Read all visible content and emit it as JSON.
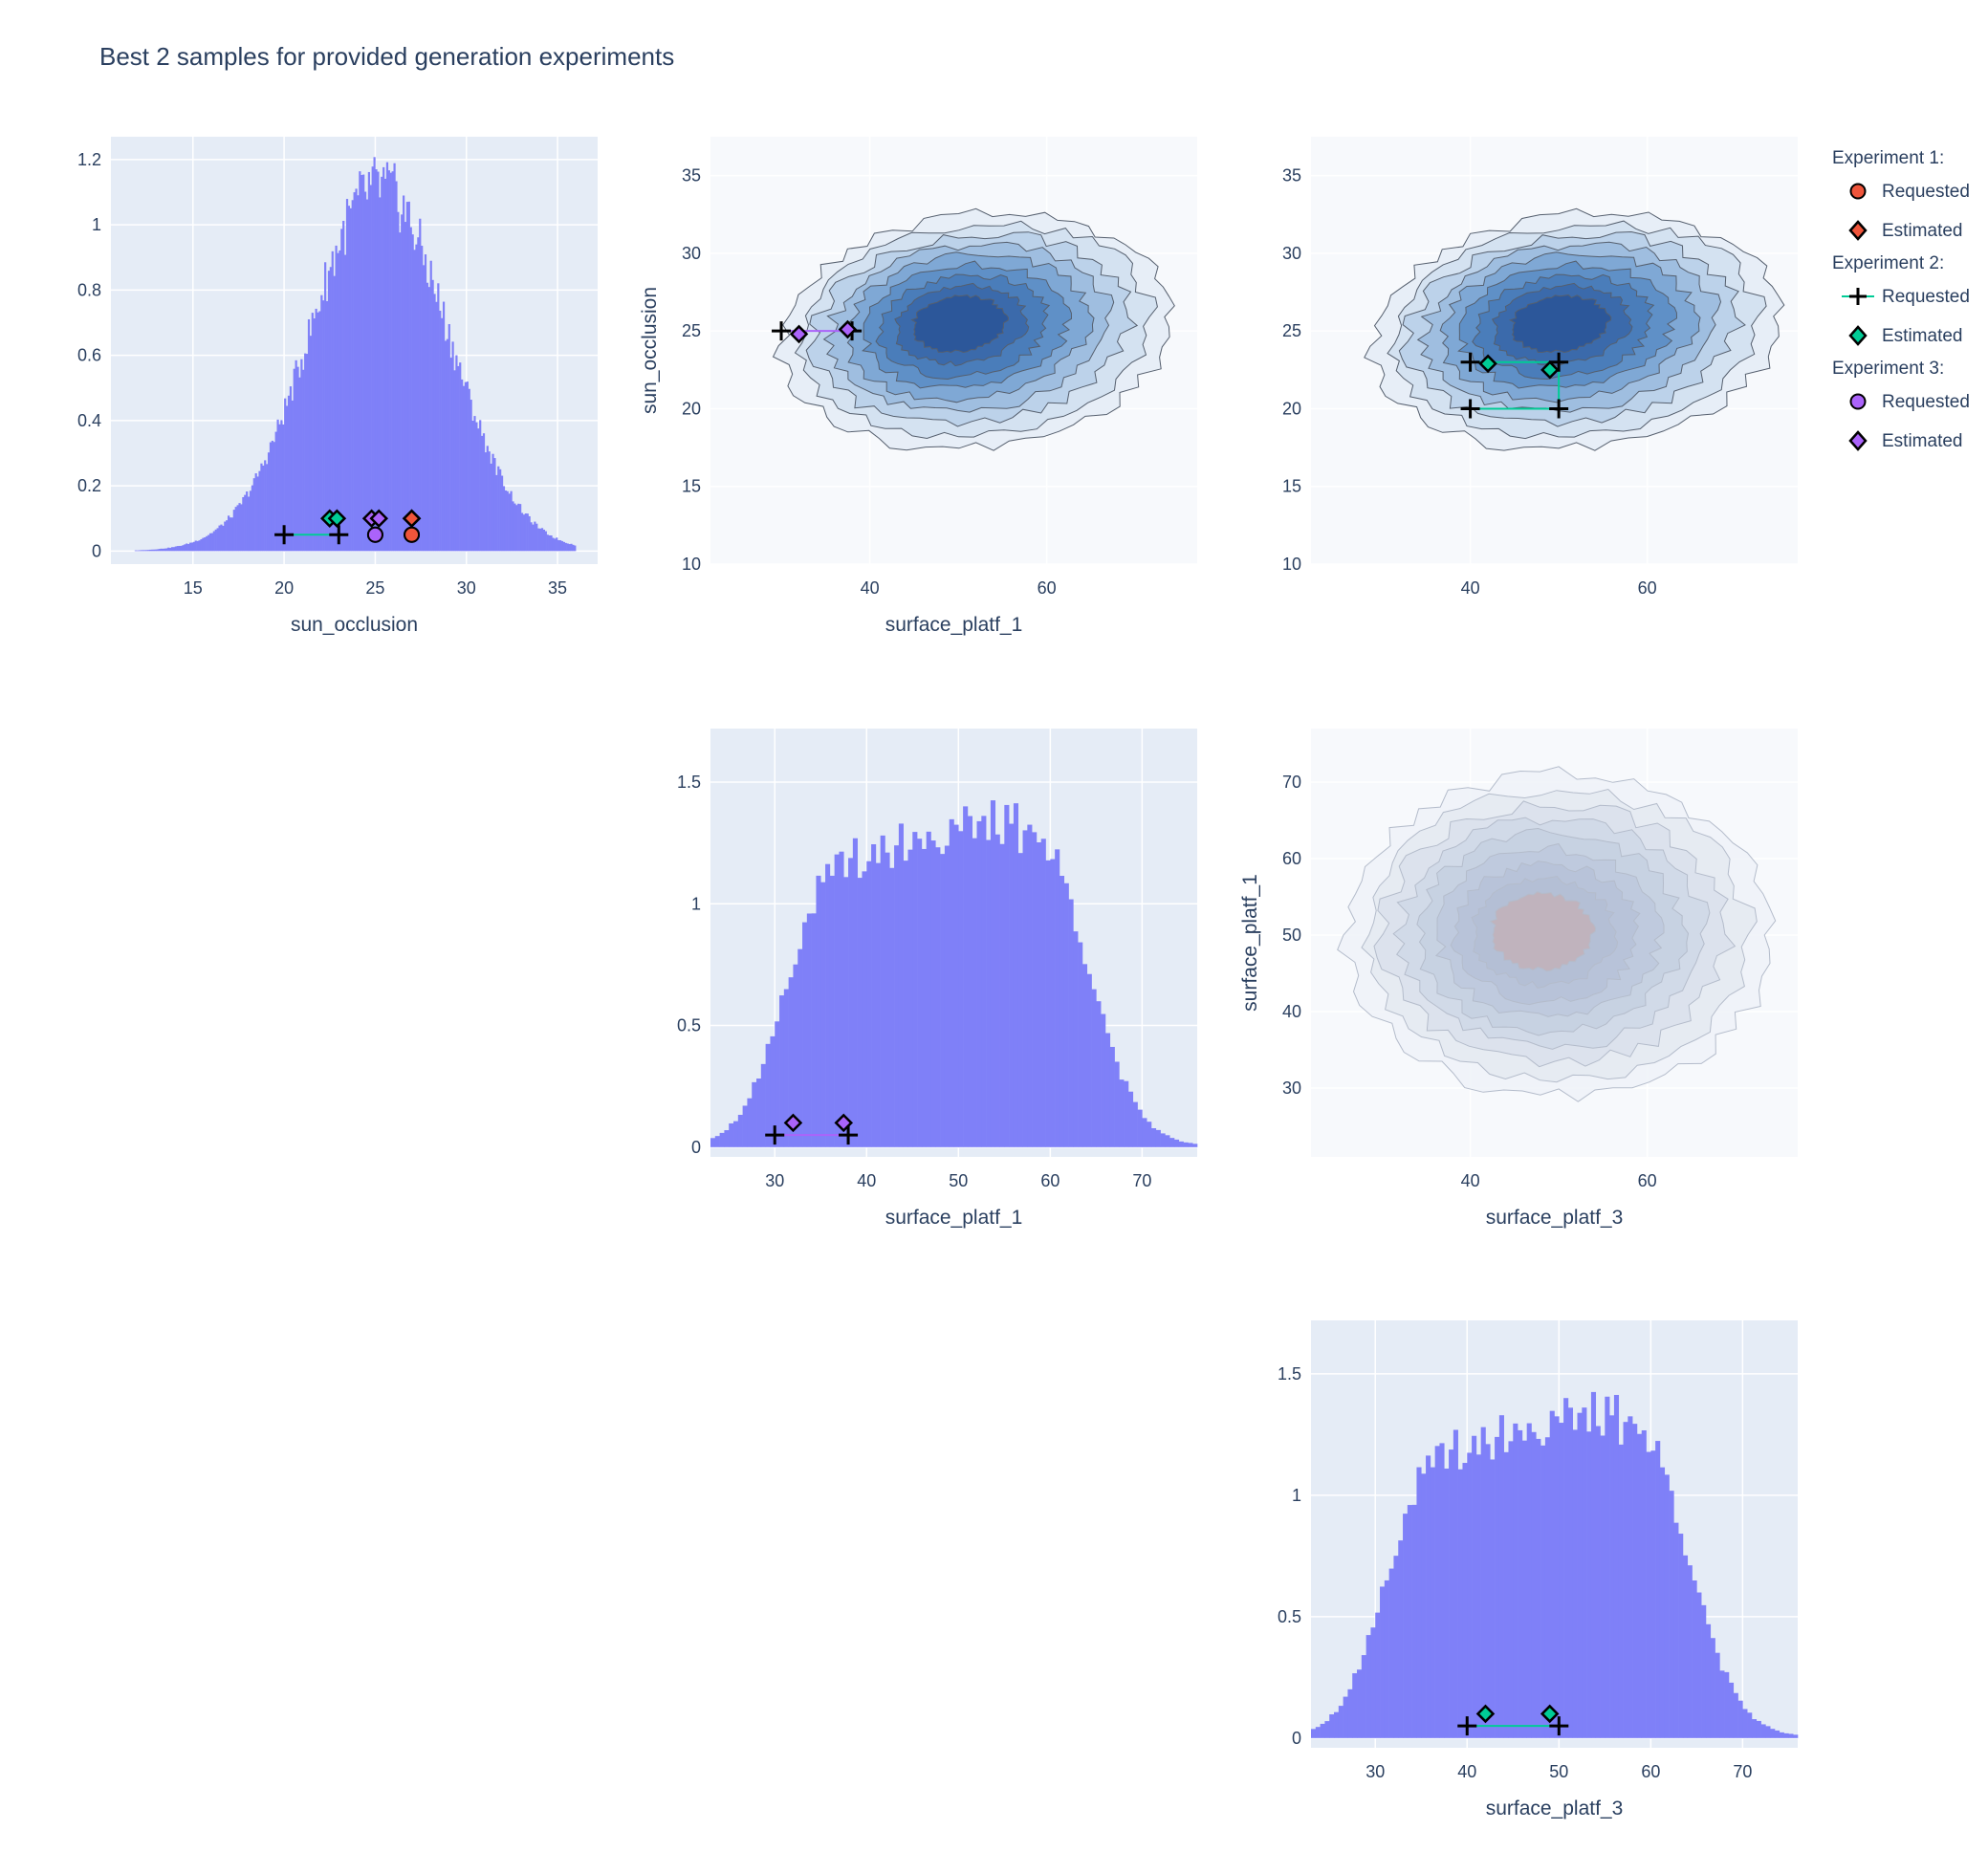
{
  "title": "Best 2 samples for provided generation experiments",
  "legend": {
    "groups": [
      {
        "name": "Experiment 1:",
        "color": "#ef553b",
        "items": [
          "Requested",
          "Estimated"
        ]
      },
      {
        "name": "Experiment 2:",
        "color": "#00cc96",
        "items": [
          "Requested",
          "Estimated"
        ]
      },
      {
        "name": "Experiment 3:",
        "color": "#ab63fa",
        "items": [
          "Requested",
          "Estimated"
        ]
      }
    ]
  },
  "colors": {
    "plot_bg": "#e5ecf6",
    "contour_bg": "#f7f9fc",
    "histogram": "#7f80f8",
    "exp1": "#ef553b",
    "exp2": "#00cc96",
    "exp3": "#ab63fa"
  },
  "chart_data": [
    {
      "id": "hist_sun_occlusion",
      "type": "bar",
      "xlabel": "sun_occlusion",
      "ylabel": "",
      "xlim": [
        10.5,
        37.2
      ],
      "ylim": [
        -0.04,
        1.27
      ],
      "xticks": [
        15,
        20,
        25,
        30,
        35
      ],
      "yticks": [
        0,
        0.2,
        0.4,
        0.6,
        0.8,
        1,
        1.2
      ],
      "ytick_labels": [
        "0",
        "0.2",
        "0.4",
        "0.6",
        "0.8",
        "1",
        "1.2"
      ],
      "hist": {
        "mean": 25.2,
        "sd": 3.75,
        "peak": 1.12,
        "bin": 0.1,
        "range": [
          11,
          36
        ]
      },
      "markers": [
        {
          "exp": 2,
          "kind": "requested",
          "x": [
            20,
            23
          ],
          "y": [
            0.05,
            0.05
          ]
        },
        {
          "exp": 2,
          "kind": "estimated",
          "x": [
            22.5,
            22.9
          ],
          "y": [
            0.1,
            0.1
          ]
        },
        {
          "exp": 3,
          "kind": "requested",
          "x": [
            25,
            25
          ],
          "y": [
            0.05,
            0.05
          ]
        },
        {
          "exp": 3,
          "kind": "estimated",
          "x": [
            24.8,
            25.2
          ],
          "y": [
            0.1,
            0.1
          ]
        },
        {
          "exp": 1,
          "kind": "requested",
          "x": [
            27,
            27
          ],
          "y": [
            0.05,
            0.05
          ]
        },
        {
          "exp": 1,
          "kind": "estimated",
          "x": [
            27,
            27
          ],
          "y": [
            0.1,
            0.1
          ]
        }
      ]
    },
    {
      "id": "contour_p1_sun",
      "type": "contour",
      "xlabel": "surface_platf_1",
      "ylabel": "sun_occlusion",
      "xlim": [
        22,
        77
      ],
      "ylim": [
        10,
        37.5
      ],
      "xticks": [
        40,
        60
      ],
      "yticks": [
        10,
        15,
        20,
        25,
        30,
        35
      ],
      "density": {
        "cx": 52,
        "cy": 25,
        "rx": 22,
        "ry": 7.5,
        "tilt": 0.17
      },
      "markers": [
        {
          "exp": 3,
          "kind": "requested",
          "x": [
            30,
            38
          ],
          "y": [
            25,
            25
          ]
        },
        {
          "exp": 3,
          "kind": "estimated",
          "x": [
            32,
            37.5
          ],
          "y": [
            24.8,
            25.1
          ]
        }
      ]
    },
    {
      "id": "contour_p3_sun",
      "type": "contour",
      "xlabel": "",
      "ylabel": "",
      "xlim": [
        22,
        77
      ],
      "ylim": [
        10,
        37.5
      ],
      "xticks": [
        40,
        60
      ],
      "yticks": [
        10,
        15,
        20,
        25,
        30,
        35
      ],
      "density": {
        "cx": 52,
        "cy": 25,
        "rx": 23,
        "ry": 7.5,
        "tilt": 0.17
      },
      "markers": [
        {
          "exp": 2,
          "kind": "requested",
          "x": [
            40,
            50,
            50,
            40
          ],
          "y": [
            23,
            23,
            20,
            20
          ]
        },
        {
          "exp": 2,
          "kind": "estimated",
          "x": [
            42,
            49
          ],
          "y": [
            22.9,
            22.5
          ]
        }
      ]
    },
    {
      "id": "hist_surface_platf_1",
      "type": "bar",
      "xlabel": "surface_platf_1",
      "ylabel": "",
      "xlim": [
        23,
        76
      ],
      "ylim": [
        -0.04,
        1.72
      ],
      "xticks": [
        30,
        40,
        50,
        60,
        70
      ],
      "yticks": [
        0,
        0.5,
        1,
        1.5
      ],
      "ytick_labels": [
        "0",
        "0.5",
        "1",
        "1.5"
      ],
      "hist": {
        "plateau": true,
        "bin": 0.5,
        "range": [
          23,
          76
        ]
      },
      "markers": [
        {
          "exp": 3,
          "kind": "requested",
          "x": [
            30,
            38
          ],
          "y": [
            0.05,
            0.05
          ]
        },
        {
          "exp": 3,
          "kind": "estimated",
          "x": [
            32,
            37.5
          ],
          "y": [
            0.1,
            0.1
          ]
        }
      ]
    },
    {
      "id": "contour_p3_p1",
      "type": "contour",
      "xlabel": "surface_platf_3",
      "ylabel": "surface_platf_1",
      "xlim": [
        22,
        77
      ],
      "ylim": [
        21,
        77
      ],
      "xticks": [
        40,
        60
      ],
      "yticks": [
        30,
        40,
        50,
        60,
        70
      ],
      "faded": true,
      "density": {
        "cx": 50,
        "cy": 50,
        "rx": 24,
        "ry": 21,
        "tilt": 0
      }
    },
    {
      "id": "hist_surface_platf_3",
      "type": "bar",
      "xlabel": "surface_platf_3",
      "ylabel": "",
      "xlim": [
        23,
        76
      ],
      "ylim": [
        -0.04,
        1.72
      ],
      "xticks": [
        30,
        40,
        50,
        60,
        70
      ],
      "yticks": [
        0,
        0.5,
        1,
        1.5
      ],
      "ytick_labels": [
        "0",
        "0.5",
        "1",
        "1.5"
      ],
      "hist": {
        "plateau": true,
        "bin": 0.5,
        "range": [
          23,
          76
        ]
      },
      "markers": [
        {
          "exp": 2,
          "kind": "requested",
          "x": [
            40,
            50
          ],
          "y": [
            0.05,
            0.05
          ]
        },
        {
          "exp": 2,
          "kind": "estimated",
          "x": [
            42,
            49
          ],
          "y": [
            0.1,
            0.1
          ]
        }
      ]
    }
  ]
}
